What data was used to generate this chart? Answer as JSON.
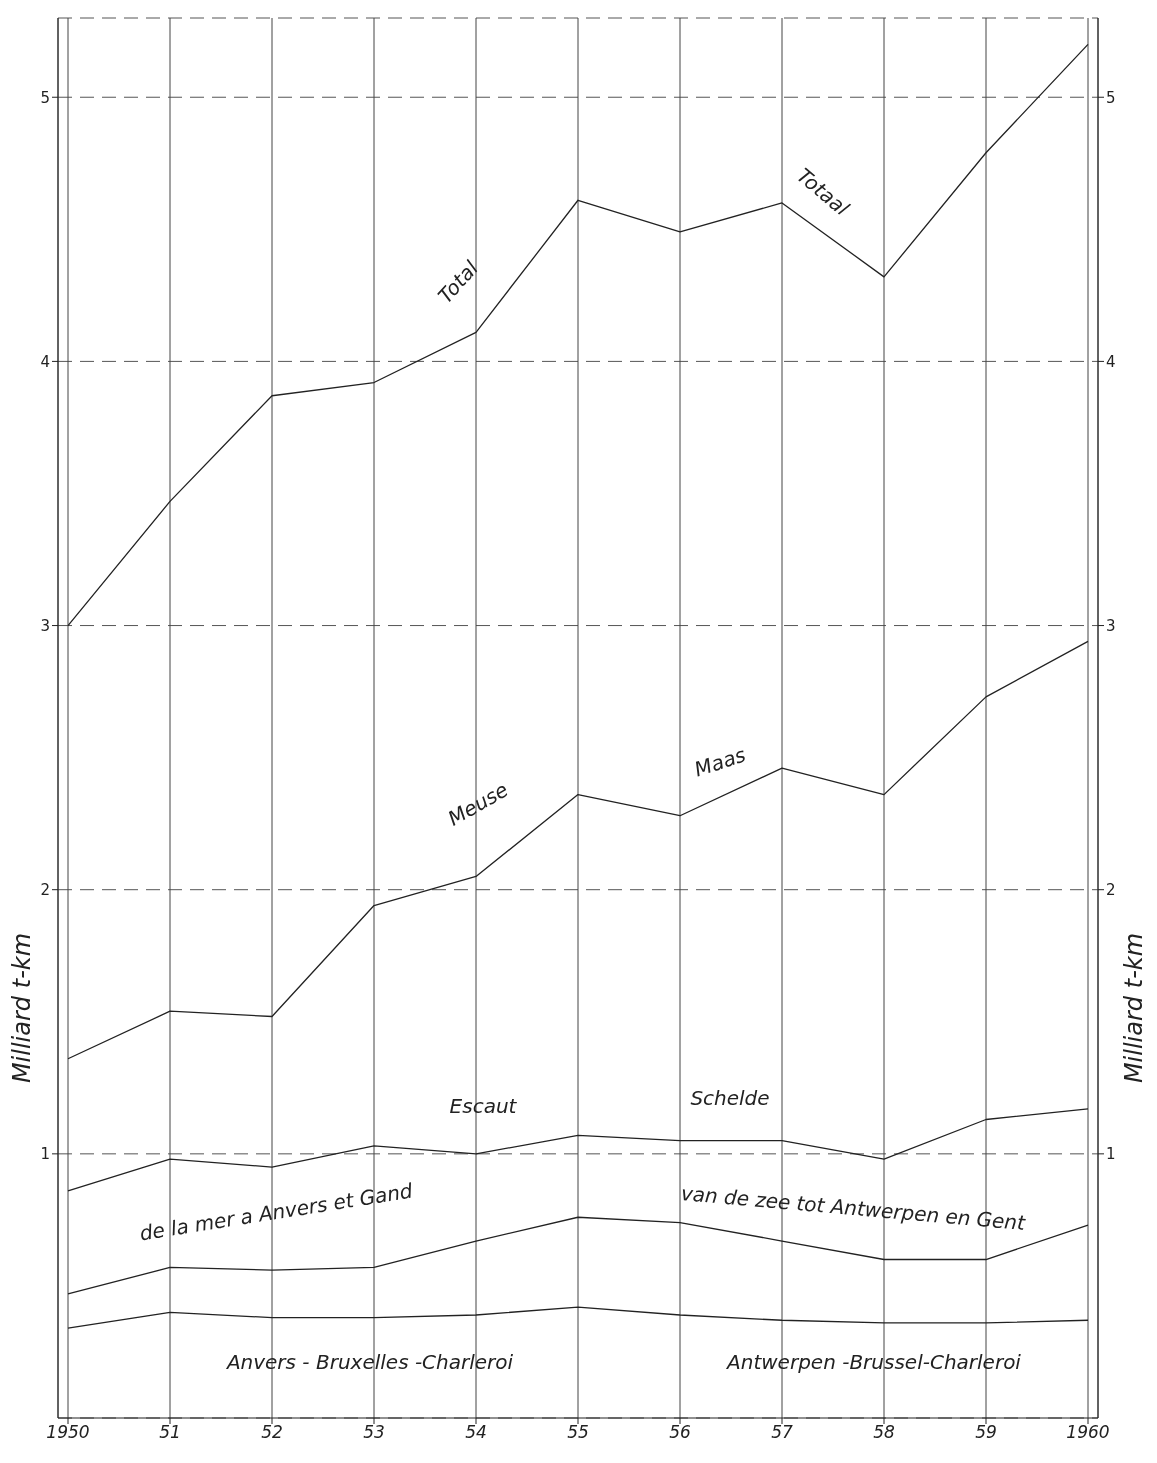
{
  "chart_data": {
    "type": "line",
    "categories": [
      "1950",
      "51",
      "52",
      "53",
      "54",
      "55",
      "56",
      "57",
      "58",
      "59",
      "1960"
    ],
    "series": [
      {
        "color": "#222222",
        "values": [
          3.0,
          3.47,
          3.87,
          3.92,
          4.11,
          4.61,
          4.49,
          4.6,
          4.32,
          4.79,
          5.2
        ]
      },
      {
        "color": "#222222",
        "values": [
          1.36,
          1.54,
          1.52,
          1.94,
          2.05,
          2.36,
          2.28,
          2.46,
          2.36,
          2.73,
          2.94
        ]
      },
      {
        "color": "#222222",
        "values": [
          0.86,
          0.98,
          0.95,
          1.03,
          1.0,
          1.07,
          1.05,
          1.05,
          0.98,
          1.13,
          1.17
        ]
      },
      {
        "color": "#222222",
        "values": [
          0.47,
          0.57,
          0.56,
          0.57,
          0.67,
          0.76,
          0.74,
          0.67,
          0.6,
          0.6,
          0.73
        ]
      },
      {
        "color": "#222222",
        "values": [
          0.34,
          0.4,
          0.38,
          0.38,
          0.39,
          0.42,
          0.39,
          0.37,
          0.36,
          0.36,
          0.37
        ]
      }
    ],
    "ylim": [
      0,
      5.3
    ],
    "yticks": [
      1,
      2,
      3,
      4,
      5
    ],
    "y2lim": [
      0,
      5.3
    ],
    "y2ticks": [
      1,
      2,
      3,
      4,
      5
    ],
    "ylabel": "Milliard t-km",
    "y2label": "Milliard t-km",
    "grid": true,
    "marker": "none",
    "line_style": "solid",
    "annotations": [
      "Total",
      "Totaal",
      "Meuse",
      "Maas",
      "Escaut",
      "Schelde",
      "de la mer a Anvers et Gand",
      "van de zee tot Antwerpen en Gent",
      "Anvers - Bruxelles -Charleroi",
      "Antwerpen -Brussel-Charleroi"
    ]
  }
}
